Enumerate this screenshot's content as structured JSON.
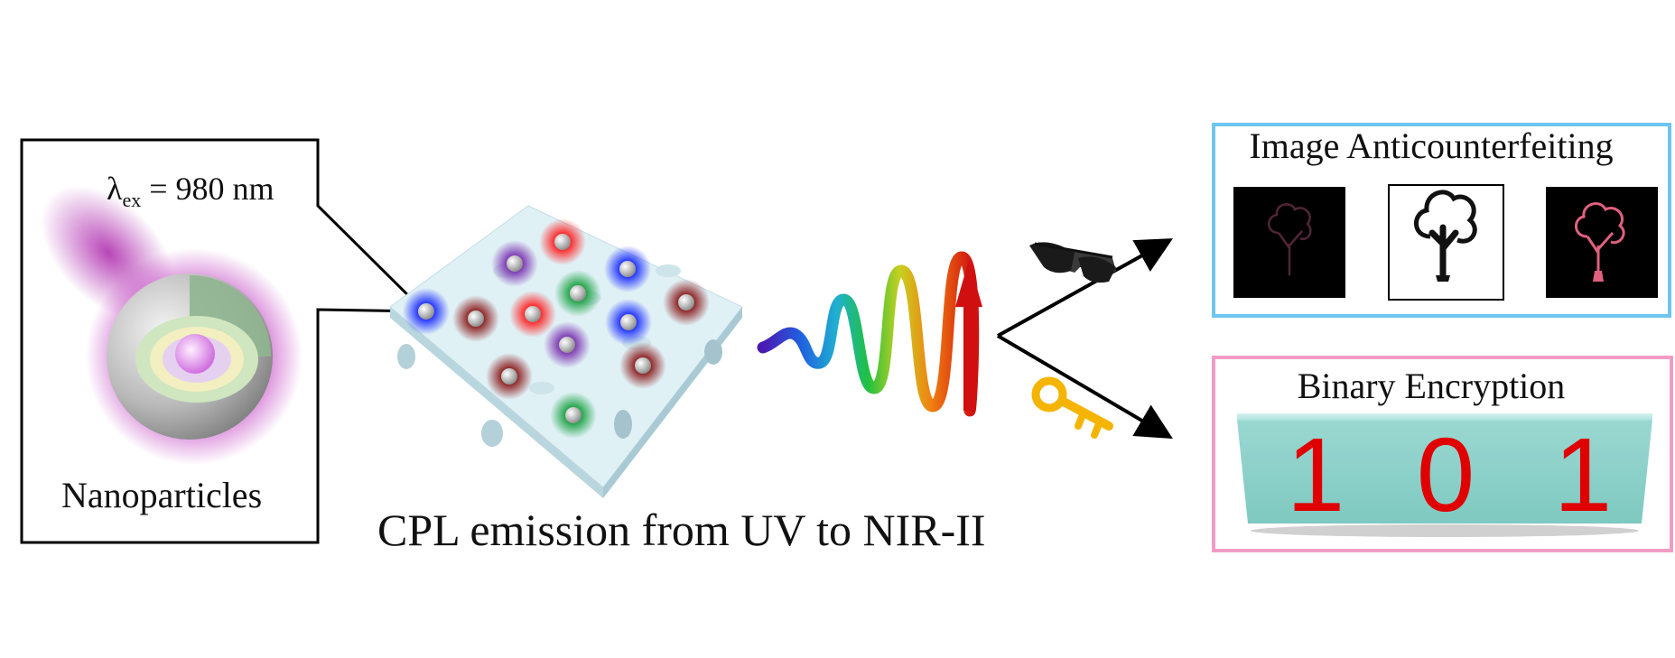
{
  "excitation": {
    "lambda_symbol": "λ",
    "subscript": "ex",
    "value": " = 980 nm"
  },
  "nanoparticle": {
    "label": "Nanoparticles"
  },
  "emission": {
    "label": "CPL emission from UV to NIR-II"
  },
  "applications": {
    "image": {
      "title": "Image Anticounterfeiting",
      "border_color": "#6cc6ee"
    },
    "binary": {
      "title": "Binary Encryption",
      "border_color": "#f29cc4",
      "digits": [
        "1",
        "0",
        "1"
      ]
    }
  },
  "icons": [
    "glasses-icon",
    "key-icon",
    "tree-icon"
  ],
  "colors": {
    "glow": "#c03cc0",
    "key": "#f4b400",
    "digit": "#e00000",
    "film": "#dff0f5",
    "block": "#8fd3cc"
  }
}
